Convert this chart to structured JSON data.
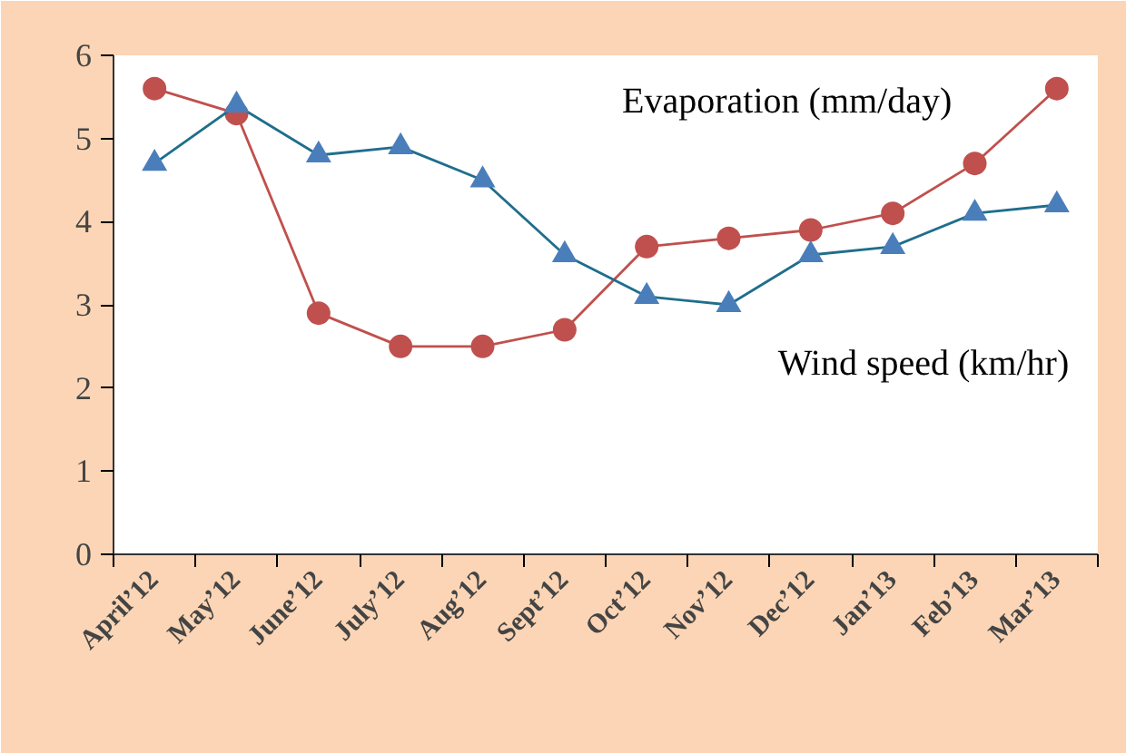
{
  "chart_data": {
    "type": "line",
    "categories": [
      "April’12",
      "May’12",
      "June’12",
      "July’12",
      "Aug’12",
      "Sept’12",
      "Oct’12",
      "Nov’12",
      "Dec’12",
      "Jan’13",
      "Feb’13",
      "Mar’13"
    ],
    "series": [
      {
        "name": "Evaporation (mm/day)",
        "color": "#c0504d",
        "marker": "circle",
        "values": [
          5.6,
          5.3,
          2.9,
          2.5,
          2.5,
          2.7,
          3.7,
          3.8,
          3.9,
          4.1,
          4.7,
          5.6
        ]
      },
      {
        "name": "Wind speed (km/hr)",
        "color": "#1f6e8c",
        "marker": "triangle",
        "values": [
          4.7,
          5.4,
          4.8,
          4.9,
          4.5,
          3.6,
          3.1,
          3.0,
          3.6,
          3.7,
          4.1,
          4.2
        ]
      }
    ],
    "ylim": [
      0,
      6
    ],
    "yticks": [
      0,
      1,
      2,
      3,
      4,
      5,
      6
    ],
    "grid": false,
    "legend": false,
    "line_style": "solid"
  }
}
